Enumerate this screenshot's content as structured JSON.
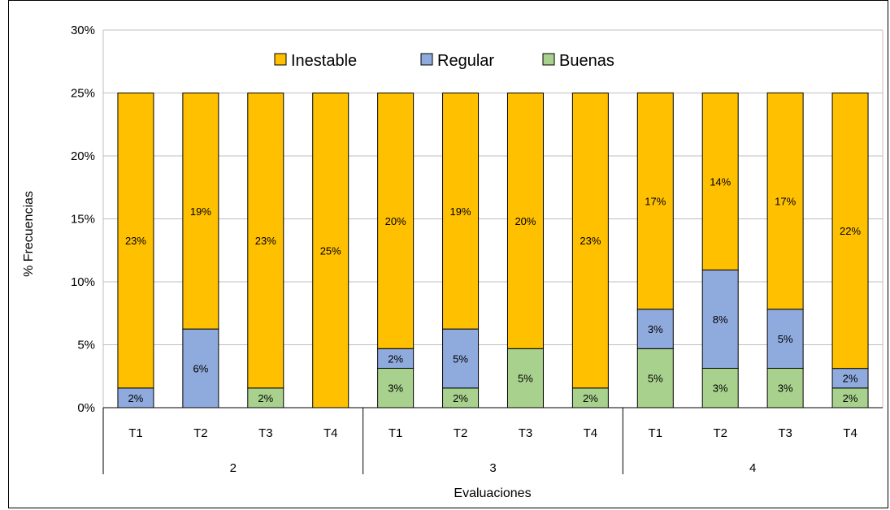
{
  "chart_data": {
    "type": "bar",
    "stacked": true,
    "title": "",
    "xlabel": "Evaluaciones",
    "ylabel": "% Frecuencias",
    "ylim": [
      0,
      30
    ],
    "yticks": [
      "0%",
      "5%",
      "10%",
      "15%",
      "20%",
      "25%",
      "30%"
    ],
    "grid": true,
    "legend_position": "top",
    "groups": [
      {
        "label": "2",
        "categories": [
          "T1",
          "T2",
          "T3",
          "T4"
        ]
      },
      {
        "label": "3",
        "categories": [
          "T1",
          "T2",
          "T3",
          "T4"
        ]
      },
      {
        "label": "4",
        "categories": [
          "T1",
          "T2",
          "T3",
          "T4"
        ]
      }
    ],
    "series": [
      {
        "name": "Buenas",
        "color": "#a9d18e",
        "values": [
          0,
          0,
          1.56,
          0,
          3.13,
          1.56,
          4.69,
          1.56,
          4.69,
          3.13,
          3.13,
          1.56
        ],
        "labels": [
          "",
          "",
          "2%",
          "",
          "3%",
          "2%",
          "5%",
          "2%",
          "5%",
          "3%",
          "3%",
          "2%"
        ]
      },
      {
        "name": "Regular",
        "color": "#8faadc",
        "values": [
          1.56,
          6.25,
          0,
          0,
          1.56,
          4.69,
          0,
          0,
          3.13,
          7.81,
          4.69,
          1.56
        ],
        "labels": [
          "2%",
          "6%",
          "",
          "",
          "2%",
          "5%",
          "",
          "",
          "3%",
          "8%",
          "5%",
          "2%"
        ]
      },
      {
        "name": "Inestable",
        "color": "#ffc000",
        "values": [
          23.44,
          18.75,
          23.44,
          25,
          20.31,
          18.75,
          20.31,
          23.44,
          17.19,
          14.06,
          17.19,
          21.88
        ],
        "labels": [
          "23%",
          "19%",
          "23%",
          "25%",
          "20%",
          "19%",
          "20%",
          "23%",
          "17%",
          "14%",
          "17%",
          "22%"
        ]
      }
    ],
    "legend_order": [
      "Inestable",
      "Regular",
      "Buenas"
    ]
  }
}
